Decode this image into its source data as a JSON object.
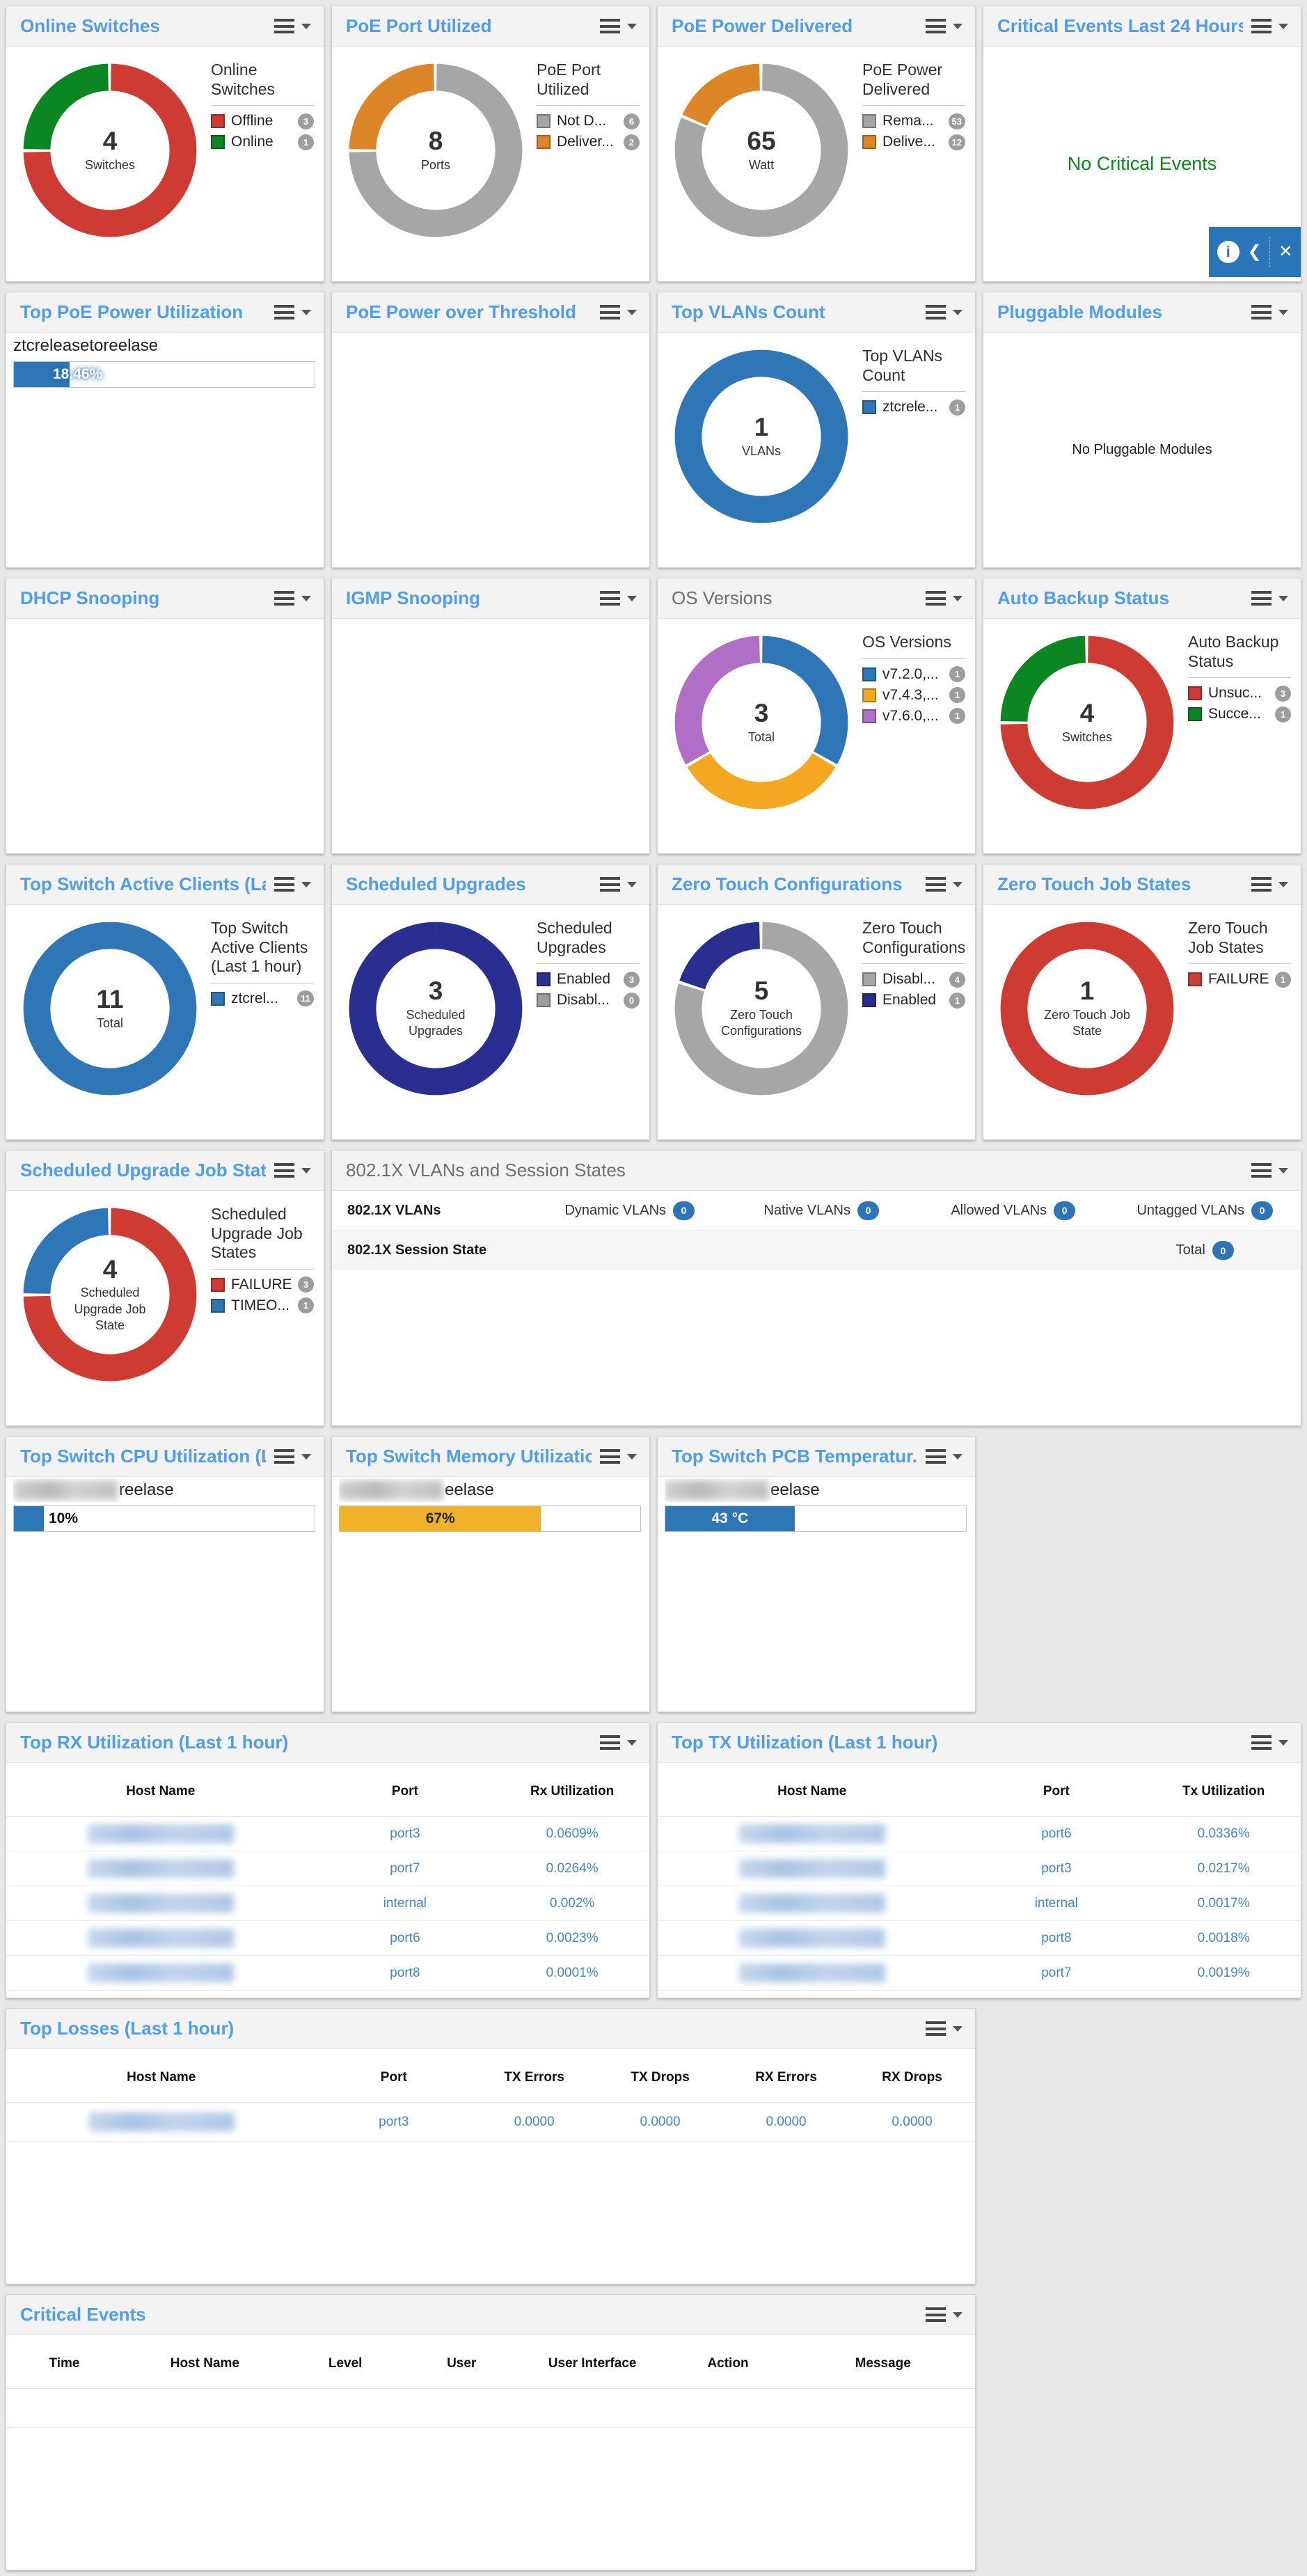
{
  "colors": {
    "title_link_blue": "#4f9df3",
    "title_gray": "#6f6f6f",
    "red": "#CD3B33",
    "green": "#0B8623",
    "donut_gray": "#A6A6A6",
    "orange": "#DC8627",
    "blue": "#2E76B5",
    "navy": "#2A2E90",
    "amber": "#F4A821",
    "purple": "#B06EC6",
    "bar_amber": "#F0B22A",
    "table_link": "#4286CB",
    "badge_gray": "#9D9D9D",
    "badge_blue": "#2E74B8",
    "toolbar_blue": "#2A74B8",
    "no_critical_green": "#0B8A18"
  },
  "panels": {
    "online_switches": {
      "title": "Online Switches",
      "center_value": "4",
      "center_label": "Switches",
      "legend_title": "Online Switches",
      "legend": [
        {
          "label": "Offline",
          "count": "3",
          "color": "#CD3B33"
        },
        {
          "label": "Online",
          "count": "1",
          "color": "#0B8623"
        }
      ],
      "donut": {
        "segments": [
          {
            "label": "Offline",
            "value": 3,
            "color": "#CD3B33"
          },
          {
            "label": "Online",
            "value": 1,
            "color": "#0B8623"
          }
        ]
      }
    },
    "poe_port_utilized": {
      "title": "PoE Port Utilized",
      "center_value": "8",
      "center_label": "Ports",
      "legend_title": "PoE Port Utilized",
      "legend": [
        {
          "label": "Not D...",
          "count": "6",
          "color": "#A6A6A6"
        },
        {
          "label": "Deliver...",
          "count": "2",
          "color": "#DC8627"
        }
      ],
      "donut": {
        "segments": [
          {
            "label": "Not Delivering",
            "value": 6,
            "color": "#A6A6A6"
          },
          {
            "label": "Delivering",
            "value": 2,
            "color": "#DC8627"
          }
        ]
      }
    },
    "poe_power_delivered": {
      "title": "PoE Power Delivered",
      "center_value": "65",
      "center_label": "Watt",
      "legend_title": "PoE Power Delivered",
      "legend": [
        {
          "label": "Rema...",
          "count": "53",
          "color": "#A6A6A6"
        },
        {
          "label": "Delive...",
          "count": "12",
          "color": "#DC8627"
        }
      ],
      "donut": {
        "segments": [
          {
            "label": "Remaining",
            "value": 53,
            "color": "#A6A6A6"
          },
          {
            "label": "Delivered",
            "value": 12,
            "color": "#DC8627"
          }
        ]
      }
    },
    "critical_events_24h": {
      "title": "Critical Events Last 24 Hours",
      "message": "No Critical Events",
      "toolbar": {
        "info_icon": "i",
        "back_icon": "❮",
        "close_icon": "✕"
      }
    },
    "top_poe_power": {
      "title": "Top PoE Power Utilization",
      "item_label": "ztcreleasetoreelase",
      "value": "18.46%",
      "gauge": {
        "percent": 18.46,
        "color": "#2E76B5"
      }
    },
    "poe_over_threshold": {
      "title": "PoE Power over Threshold"
    },
    "top_vlans": {
      "title": "Top VLANs Count",
      "center_value": "1",
      "center_label": "VLANs",
      "legend_title": "Top VLANs Count",
      "legend": [
        {
          "label": "ztcrele...",
          "count": "1",
          "color": "#2E76B5"
        }
      ],
      "donut": {
        "segments": [
          {
            "label": "ztcreleasetoreelase",
            "value": 1,
            "color": "#2E76B5"
          }
        ]
      }
    },
    "pluggable_modules": {
      "title": "Pluggable Modules",
      "message": "No Pluggable Modules"
    },
    "dhcp_snooping": {
      "title": "DHCP Snooping"
    },
    "igmp_snooping": {
      "title": "IGMP Snooping"
    },
    "os_versions": {
      "title": "OS Versions",
      "center_value": "3",
      "center_label": "Total",
      "legend_title": "OS Versions",
      "legend": [
        {
          "label": "v7.2.0,...",
          "count": "1",
          "color": "#2E76B5"
        },
        {
          "label": "v7.4.3,...",
          "count": "1",
          "color": "#F4A821"
        },
        {
          "label": "v7.6.0,...",
          "count": "1",
          "color": "#B06EC6"
        }
      ],
      "donut": {
        "segments": [
          {
            "label": "v7.2.0",
            "value": 1,
            "color": "#2E76B5"
          },
          {
            "label": "v7.4.3",
            "value": 1,
            "color": "#F4A821"
          },
          {
            "label": "v7.6.0",
            "value": 1,
            "color": "#B06EC6"
          }
        ]
      }
    },
    "auto_backup": {
      "title": "Auto Backup Status",
      "center_value": "4",
      "center_label": "Switches",
      "legend_title": "Auto Backup Status",
      "legend": [
        {
          "label": "Unsuc...",
          "count": "3",
          "color": "#CD3B33"
        },
        {
          "label": "Succe...",
          "count": "1",
          "color": "#0B8623"
        }
      ],
      "donut": {
        "segments": [
          {
            "label": "Unsuccessful",
            "value": 3,
            "color": "#CD3B33"
          },
          {
            "label": "Successful",
            "value": 1,
            "color": "#0B8623"
          }
        ]
      }
    },
    "active_clients": {
      "title": "Top Switch Active Clients (La...",
      "center_value": "11",
      "center_label": "Total",
      "legend_title": "Top Switch Active Clients (Last 1 hour)",
      "legend": [
        {
          "label": "ztcrel...",
          "count": "11",
          "color": "#2E76B5"
        }
      ],
      "donut": {
        "segments": [
          {
            "label": "ztcreleasetoreelase",
            "value": 11,
            "color": "#2E76B5"
          }
        ]
      }
    },
    "scheduled_upgrades": {
      "title": "Scheduled Upgrades",
      "center_value": "3",
      "center_label": "Scheduled Upgrades",
      "legend_title": "Scheduled Upgrades",
      "legend": [
        {
          "label": "Enabled",
          "count": "3",
          "color": "#2A2E90"
        },
        {
          "label": "Disabl...",
          "count": "0",
          "color": "#9D9D9D"
        }
      ],
      "donut": {
        "segments": [
          {
            "label": "Enabled",
            "value": 3,
            "color": "#2A2E90"
          }
        ]
      }
    },
    "ztc_configurations": {
      "title": "Zero Touch Configurations",
      "center_value": "5",
      "center_label": "Zero Touch Configurations",
      "legend_title": "Zero Touch Configurations",
      "legend": [
        {
          "label": "Disabl...",
          "count": "4",
          "color": "#A6A6A6"
        },
        {
          "label": "Enabled",
          "count": "1",
          "color": "#2A2E90"
        }
      ],
      "donut": {
        "segments": [
          {
            "label": "Disabled",
            "value": 4,
            "color": "#A6A6A6"
          },
          {
            "label": "Enabled",
            "value": 1,
            "color": "#2A2E90"
          }
        ]
      }
    },
    "ztc_job_states": {
      "title": "Zero Touch Job States",
      "center_value": "1",
      "center_label": "Zero Touch Job State",
      "legend_title": "Zero Touch Job States",
      "legend": [
        {
          "label": "FAILURE",
          "count": "1",
          "color": "#CD3B33"
        }
      ],
      "donut": {
        "segments": [
          {
            "label": "FAILURE",
            "value": 1,
            "color": "#CD3B33"
          }
        ]
      }
    },
    "sched_upgrade_jobs": {
      "title": "Scheduled Upgrade Job Stat...",
      "center_value": "4",
      "center_label": "Scheduled Upgrade Job State",
      "legend_title": "Scheduled Upgrade Job States",
      "legend": [
        {
          "label": "FAILURE",
          "count": "3",
          "color": "#CD3B33"
        },
        {
          "label": "TIMEO...",
          "count": "1",
          "color": "#2E76B5"
        }
      ],
      "donut": {
        "segments": [
          {
            "label": "FAILURE",
            "value": 3,
            "color": "#CD3B33"
          },
          {
            "label": "TIMEOUT",
            "value": 1,
            "color": "#2E76B5"
          }
        ]
      }
    },
    "dot1x": {
      "title": "802.1X VLANs and Session States",
      "row1_label": "802.1X VLANs",
      "groups": [
        {
          "label": "Dynamic VLANs",
          "count": "0"
        },
        {
          "label": "Native VLANs",
          "count": "0"
        },
        {
          "label": "Allowed VLANs",
          "count": "0"
        },
        {
          "label": "Untagged VLANs",
          "count": "0"
        }
      ],
      "row2_label": "802.1X Session State",
      "total_label": "Total",
      "total_count": "0"
    },
    "cpu": {
      "title": "Top Switch CPU Utilization (L...",
      "label_suffix": "reelase",
      "value": "10%",
      "gauge": {
        "percent": 10,
        "color": "#2E76B5"
      }
    },
    "memory": {
      "title": "Top Switch Memory Utilizatio...",
      "label_suffix": "eelase",
      "value": "67%",
      "gauge": {
        "percent": 67,
        "color": "#F0B22A"
      }
    },
    "pcb": {
      "title": "Top Switch PCB Temperatur...",
      "label_suffix": "eelase",
      "value": "43 °C",
      "gauge": {
        "percent": 43,
        "color": "#2E76B5"
      }
    },
    "rx": {
      "title": "Top RX Utilization (Last 1 hour)",
      "table": {
        "columns": [
          {
            "label": "Host Name",
            "width": "48%",
            "type": "redacted"
          },
          {
            "label": "Port",
            "width": "28%"
          },
          {
            "label": "Rx Utilization",
            "width": "24%"
          }
        ],
        "rows": [
          [
            "",
            "port3",
            "0.0609%"
          ],
          [
            "",
            "port7",
            "0.0264%"
          ],
          [
            "",
            "internal",
            "0.002%"
          ],
          [
            "",
            "port6",
            "0.0023%"
          ],
          [
            "",
            "port8",
            "0.0001%"
          ]
        ]
      }
    },
    "tx": {
      "title": "Top TX Utilization (Last 1 hour)",
      "table": {
        "columns": [
          {
            "label": "Host Name",
            "width": "48%",
            "type": "redacted"
          },
          {
            "label": "Port",
            "width": "28%"
          },
          {
            "label": "Tx Utilization",
            "width": "24%"
          }
        ],
        "rows": [
          [
            "",
            "port6",
            "0.0336%"
          ],
          [
            "",
            "port3",
            "0.0217%"
          ],
          [
            "",
            "internal",
            "0.0017%"
          ],
          [
            "",
            "port8",
            "0.0018%"
          ],
          [
            "",
            "port7",
            "0.0019%"
          ]
        ]
      }
    },
    "losses": {
      "title": "Top Losses (Last 1 hour)",
      "table": {
        "columns": [
          {
            "label": "Host Name",
            "width": "32%",
            "type": "redacted"
          },
          {
            "label": "Port",
            "width": "16%"
          },
          {
            "label": "TX Errors",
            "width": "13%"
          },
          {
            "label": "TX Drops",
            "width": "13%"
          },
          {
            "label": "RX Errors",
            "width": "13%"
          },
          {
            "label": "RX Drops",
            "width": "13%"
          }
        ],
        "rows": [
          [
            "",
            "port3",
            "0.0000",
            "0.0000",
            "0.0000",
            "0.0000"
          ]
        ]
      }
    },
    "critical_events": {
      "title": "Critical Events",
      "table": {
        "columns": [
          {
            "label": "Time",
            "width": "12%"
          },
          {
            "label": "Host Name",
            "width": "17%"
          },
          {
            "label": "Level",
            "width": "12%"
          },
          {
            "label": "User",
            "width": "12%"
          },
          {
            "label": "User Interface",
            "width": "15%"
          },
          {
            "label": "Action",
            "width": "13%"
          },
          {
            "label": "Message",
            "width": "19%"
          }
        ],
        "rows": []
      }
    }
  }
}
